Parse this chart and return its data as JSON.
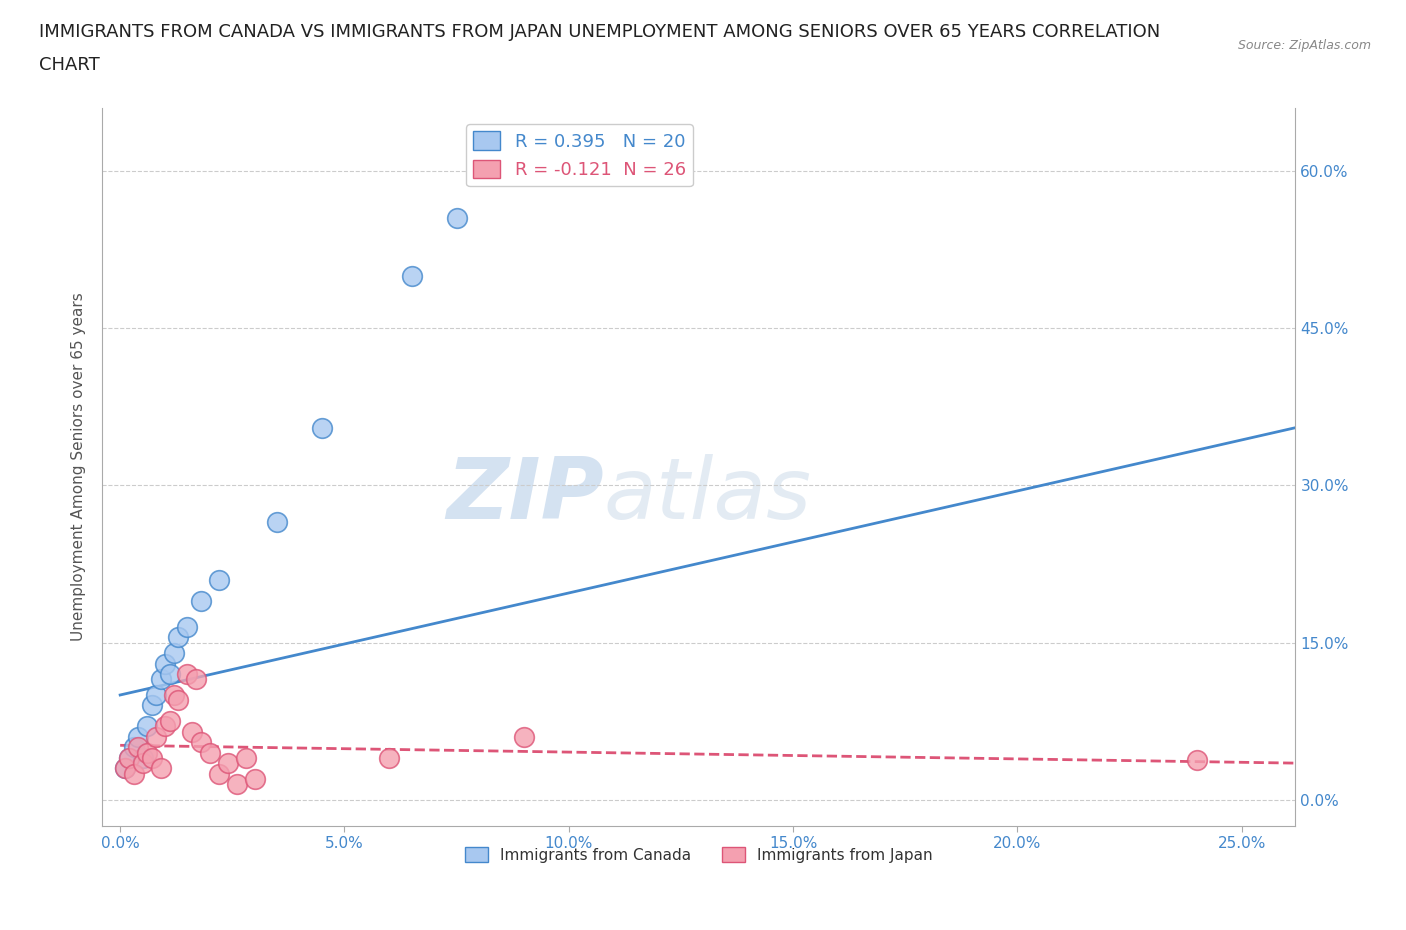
{
  "title_line1": "IMMIGRANTS FROM CANADA VS IMMIGRANTS FROM JAPAN UNEMPLOYMENT AMONG SENIORS OVER 65 YEARS CORRELATION",
  "title_line2": "CHART",
  "source": "Source: ZipAtlas.com",
  "ylabel": "Unemployment Among Seniors over 65 years",
  "x_ticks": [
    0.0,
    0.05,
    0.1,
    0.15,
    0.2,
    0.25
  ],
  "y_ticks": [
    0.0,
    0.15,
    0.3,
    0.45,
    0.6
  ],
  "xlim": [
    -0.004,
    0.262
  ],
  "ylim": [
    -0.025,
    0.66
  ],
  "canada_R": 0.395,
  "canada_N": 20,
  "japan_R": -0.121,
  "japan_N": 26,
  "canada_color": "#a8c8f0",
  "japan_color": "#f4a0b0",
  "canada_line_color": "#4488cc",
  "japan_line_color": "#dd5577",
  "watermark_zip": "ZIP",
  "watermark_atlas": "atlas",
  "canada_scatter_x": [
    0.001,
    0.002,
    0.003,
    0.004,
    0.005,
    0.006,
    0.007,
    0.008,
    0.009,
    0.01,
    0.011,
    0.012,
    0.013,
    0.015,
    0.018,
    0.022,
    0.035,
    0.045,
    0.065,
    0.075
  ],
  "canada_scatter_y": [
    0.03,
    0.04,
    0.05,
    0.06,
    0.04,
    0.07,
    0.09,
    0.1,
    0.115,
    0.13,
    0.12,
    0.14,
    0.155,
    0.165,
    0.19,
    0.21,
    0.265,
    0.355,
    0.5,
    0.555
  ],
  "japan_scatter_x": [
    0.001,
    0.002,
    0.003,
    0.004,
    0.005,
    0.006,
    0.007,
    0.008,
    0.009,
    0.01,
    0.011,
    0.012,
    0.013,
    0.015,
    0.016,
    0.017,
    0.018,
    0.02,
    0.022,
    0.024,
    0.026,
    0.028,
    0.03,
    0.06,
    0.09,
    0.24
  ],
  "japan_scatter_y": [
    0.03,
    0.04,
    0.025,
    0.05,
    0.035,
    0.045,
    0.04,
    0.06,
    0.03,
    0.07,
    0.075,
    0.1,
    0.095,
    0.12,
    0.065,
    0.115,
    0.055,
    0.045,
    0.025,
    0.035,
    0.015,
    0.04,
    0.02,
    0.04,
    0.06,
    0.038
  ],
  "canada_line_x0": 0.0,
  "canada_line_y0": 0.1,
  "canada_line_x1": 0.262,
  "canada_line_y1": 0.355,
  "japan_line_x0": 0.0,
  "japan_line_y0": 0.052,
  "japan_line_x1": 0.262,
  "japan_line_y1": 0.035,
  "background_color": "#ffffff",
  "grid_color": "#cccccc",
  "title_fontsize": 13,
  "axis_label_fontsize": 11,
  "tick_fontsize": 11,
  "legend_fontsize": 13
}
